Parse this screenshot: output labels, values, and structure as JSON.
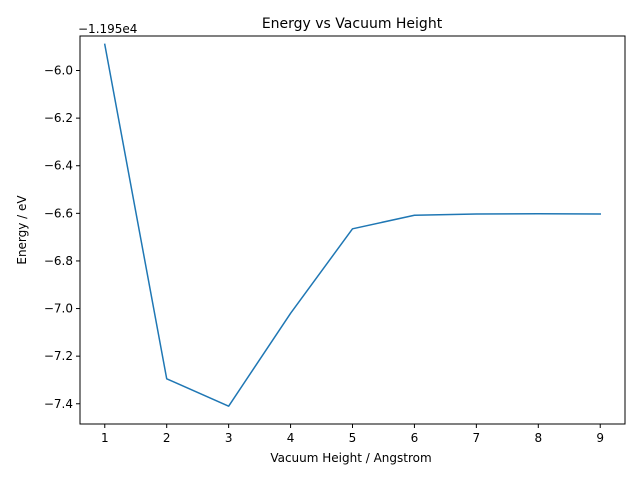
{
  "chart_data": {
    "type": "line",
    "title": "Energy vs Vacuum Height",
    "xlabel": "Vacuum Height / Angstrom",
    "ylabel": "Energy / eV",
    "offset_label": "−1.195e4",
    "offset_value": -11950,
    "x": [
      1,
      2,
      3,
      4,
      5,
      6,
      7,
      8,
      9
    ],
    "series": [
      {
        "values": [
          -5.89,
          -7.295,
          -7.41,
          -7.02,
          -6.665,
          -6.608,
          -6.603,
          -6.602,
          -6.603
        ],
        "color": "#1f77b4"
      }
    ],
    "xlim": [
      0.6,
      9.4
    ],
    "ylim": [
      -7.485,
      -5.855
    ],
    "x_ticks": [
      1,
      2,
      3,
      4,
      5,
      6,
      7,
      8,
      9
    ],
    "x_tick_labels": [
      "1",
      "2",
      "3",
      "4",
      "5",
      "6",
      "7",
      "8",
      "9"
    ],
    "y_ticks": [
      -7.4,
      -7.2,
      -7.0,
      -6.8,
      -6.6,
      -6.4,
      -6.2,
      -6.0
    ],
    "y_tick_labels": [
      "−7.4",
      "−7.2",
      "−7.0",
      "−6.8",
      "−6.6",
      "−6.4",
      "−6.2",
      "−6.0"
    ],
    "grid": false,
    "legend": "none"
  }
}
